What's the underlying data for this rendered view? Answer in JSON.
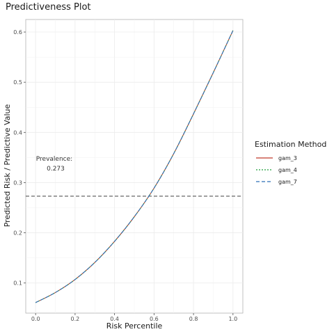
{
  "chart_data": {
    "type": "line",
    "title": "Predictiveness Plot",
    "xlabel": "Risk Percentile",
    "ylabel": "Predicted Risk / Predictive Value",
    "xlim": [
      -0.05,
      1.05
    ],
    "ylim": [
      0.04,
      0.625
    ],
    "x_ticks": [
      0.0,
      0.2,
      0.4,
      0.6,
      0.8,
      1.0
    ],
    "x_tick_labels": [
      "0.0",
      "0.2",
      "0.4",
      "0.6",
      "0.8",
      "1.0"
    ],
    "y_ticks": [
      0.1,
      0.2,
      0.3,
      0.4,
      0.5,
      0.6
    ],
    "y_tick_labels": [
      "0.1",
      "0.2",
      "0.3",
      "0.4",
      "0.5",
      "0.6"
    ],
    "grid": true,
    "legend_title": "Estimation Method",
    "legend_position": "right",
    "x": [
      0.0,
      0.1,
      0.2,
      0.3,
      0.4,
      0.5,
      0.6,
      0.7,
      0.8,
      0.9,
      1.0
    ],
    "series": [
      {
        "name": "gam_3",
        "color": "#c0392b",
        "dash": "solid",
        "values": [
          0.061,
          0.081,
          0.107,
          0.141,
          0.183,
          0.232,
          0.289,
          0.358,
          0.437,
          0.519,
          0.603
        ]
      },
      {
        "name": "gam_4",
        "color": "#1e9e3a",
        "dash": "dotted",
        "values": [
          0.061,
          0.081,
          0.107,
          0.141,
          0.183,
          0.232,
          0.289,
          0.358,
          0.437,
          0.519,
          0.603
        ]
      },
      {
        "name": "gam_7",
        "color": "#2e6fb7",
        "dash": "dashed",
        "values": [
          0.061,
          0.081,
          0.107,
          0.141,
          0.183,
          0.232,
          0.289,
          0.358,
          0.437,
          0.519,
          0.603
        ]
      }
    ],
    "reference_line": {
      "y": 0.273,
      "color": "#555555",
      "dash": "dashed"
    },
    "annotation": {
      "label": "Prevalence:",
      "value": "0.273"
    }
  }
}
